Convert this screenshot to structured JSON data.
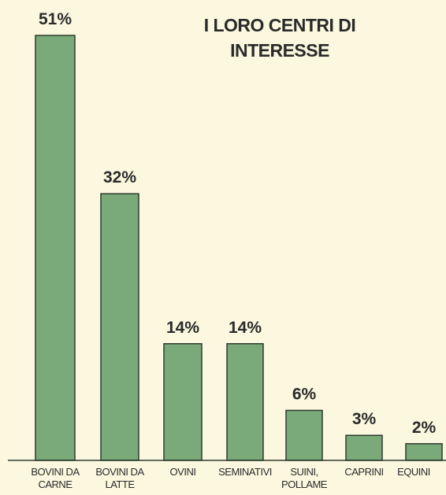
{
  "chart_data": {
    "type": "bar",
    "title": "I LORO CENTRI DI INTERESSE",
    "categories": [
      "BOVINI DA CARNE",
      "BOVINI DA LATTE",
      "OVINI",
      "SEMINATIVI",
      "SUINI, POLLAME",
      "CAPRINI",
      "EQUINI"
    ],
    "values": [
      51,
      32,
      14,
      14,
      6,
      3,
      2
    ],
    "value_labels": [
      "51%",
      "32%",
      "14%",
      "14%",
      "6%",
      "3%",
      "2%"
    ],
    "color": "#7aa97a"
  }
}
